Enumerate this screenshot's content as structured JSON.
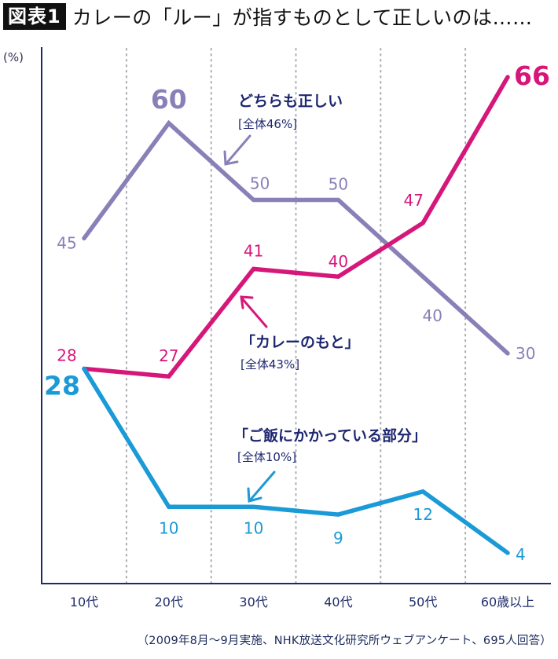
{
  "header": {
    "badge": "図表1",
    "title": "カレーの「ルー」が指すものとして正しいのは……"
  },
  "source_note": "（2009年8月〜9月実施、NHK放送文化研究所ウェブアンケート、695人回答）",
  "chart_data": {
    "type": "line",
    "title": "カレーの「ルー」が指すものとして正しいのは……",
    "xlabel": "",
    "ylabel": "(%)",
    "ylim": [
      0,
      66
    ],
    "grid": "vertical-dotted",
    "categories": [
      "10代",
      "20代",
      "30代",
      "40代",
      "50代",
      "60歳以上"
    ],
    "series": [
      {
        "name": "どちらも正しい",
        "overall": "[全体46%]",
        "color": "#8a80b8",
        "values": [
          45,
          60,
          50,
          50,
          40,
          30
        ],
        "highlight_index": 1
      },
      {
        "name": "「カレーのもと」",
        "overall": "[全体43%]",
        "color": "#d6177a",
        "values": [
          28,
          27,
          41,
          40,
          47,
          66
        ],
        "highlight_index": 5
      },
      {
        "name": "「ご飯にかかっている部分」",
        "overall": "[全体10%]",
        "color": "#1a9ad6",
        "values": [
          28,
          10,
          10,
          9,
          12,
          4
        ],
        "highlight_index": 0
      }
    ],
    "axis_color": "#1f2a6b",
    "annotation_color": "#1d2670"
  }
}
